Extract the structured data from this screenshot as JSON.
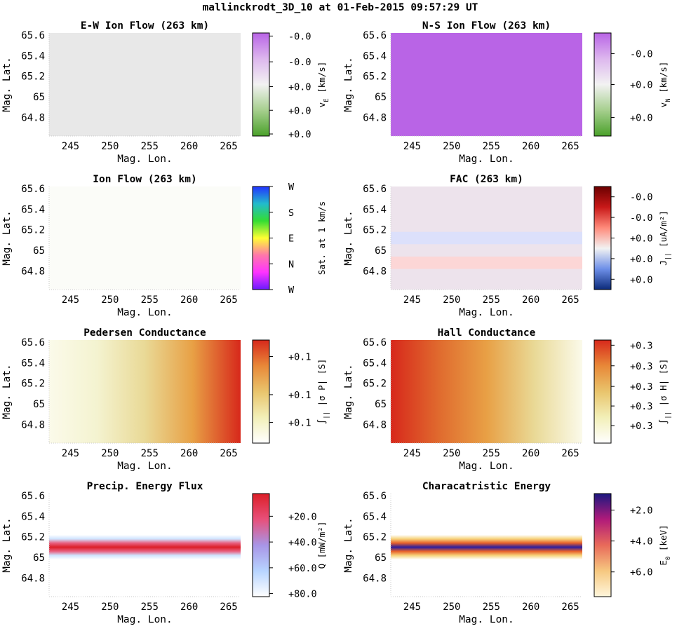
{
  "figure": {
    "title": "mallinckrodt_3D_10 at 01-Feb-2015 09:57:29 UT"
  },
  "chart_data": [
    {
      "type": "heatmap",
      "title": "E-W Ion Flow (263 km)",
      "xlabel": "Mag. Lon.",
      "ylabel": "Mag. Lat.",
      "xlim": [
        242.3,
        266.5
      ],
      "ylim": [
        64.62,
        65.62
      ],
      "xticks": [
        "245",
        "250",
        "255",
        "260",
        "265"
      ],
      "yticks": [
        "65.6",
        "65.4",
        "65.2",
        "65",
        "64.8"
      ],
      "fill": {
        "kind": "uniform",
        "color": "#e8e8e8"
      },
      "colorbar": {
        "label_main": "v",
        "label_sub": "E",
        "label_unit": " [km/s]",
        "colors": [
          "#4aa12a",
          "#a6cf8e",
          "#f2f2f2",
          "#ddb7ee",
          "#b964e6"
        ],
        "ticks": [
          "+0.0",
          "+0.0",
          "+0.0",
          "-0.0",
          "-0.0"
        ],
        "tick_positions": [
          0.98,
          0.75,
          0.52,
          0.28,
          0.03
        ]
      }
    },
    {
      "type": "heatmap",
      "title": "N-S Ion Flow (263 km)",
      "xlabel": "Mag. Lon.",
      "ylabel": "Mag. Lat.",
      "xlim": [
        242.3,
        266.5
      ],
      "ylim": [
        64.62,
        65.62
      ],
      "xticks": [
        "245",
        "250",
        "255",
        "260",
        "265"
      ],
      "yticks": [
        "65.6",
        "65.4",
        "65.2",
        "65",
        "64.8"
      ],
      "fill": {
        "kind": "uniform",
        "color": "#b964e6"
      },
      "colorbar": {
        "label_main": "v",
        "label_sub": "N",
        "label_unit": " [km/s]",
        "colors": [
          "#4aa12a",
          "#a6cf8e",
          "#f2f2f2",
          "#ddb7ee",
          "#b964e6"
        ],
        "ticks": [
          "+0.0",
          "+0.0",
          "-0.0"
        ],
        "tick_positions": [
          0.82,
          0.5,
          0.2
        ]
      }
    },
    {
      "type": "heatmap",
      "title": "Ion Flow (263 km)",
      "xlabel": "Mag. Lon.",
      "ylabel": "Mag. Lat.",
      "xlim": [
        242.3,
        266.5
      ],
      "ylim": [
        64.62,
        65.62
      ],
      "xticks": [
        "245",
        "250",
        "255",
        "260",
        "265"
      ],
      "yticks": [
        "65.6",
        "65.4",
        "65.2",
        "65",
        "64.8"
      ],
      "fill": {
        "kind": "uniform",
        "color": "#fbfcf8"
      },
      "colorbar": {
        "label_main": "Sat. at 1 km/s",
        "label_sub": "",
        "label_unit": "",
        "colors": [
          "#6a1bff",
          "#ff33ff",
          "#ff77aa",
          "#ffff33",
          "#33dd33",
          "#22bbcc",
          "#2233ff"
        ],
        "ticks": [
          "W",
          "N",
          "E",
          "S",
          "W"
        ],
        "tick_positions": [
          1.0,
          0.75,
          0.5,
          0.25,
          0.0
        ]
      }
    },
    {
      "type": "heatmap",
      "title": "FAC (263 km)",
      "xlabel": "Mag. Lon.",
      "ylabel": "Mag. Lat.",
      "xlim": [
        242.3,
        266.5
      ],
      "ylim": [
        64.62,
        65.62
      ],
      "xticks": [
        "245",
        "250",
        "255",
        "260",
        "265"
      ],
      "yticks": [
        "65.6",
        "65.4",
        "65.2",
        "65",
        "64.8"
      ],
      "fill": {
        "kind": "lat-bands",
        "base": "#ede3ec",
        "bands": [
          {
            "lat_center": 65.12,
            "half_width": 0.06,
            "color": "#dce0fb"
          },
          {
            "lat_center": 64.88,
            "half_width": 0.06,
            "color": "#fcd6d6"
          }
        ]
      },
      "colorbar": {
        "label_main": "J",
        "label_sub": "||",
        "label_unit": " [uA/m²]",
        "colors": [
          "#0b2a7a",
          "#6d8fe8",
          "#f2f2f2",
          "#ff8a7a",
          "#c81818",
          "#6a0000"
        ],
        "ticks": [
          "+0.0",
          "+0.0",
          "+0.0",
          "-0.0",
          "-0.0"
        ],
        "tick_positions": [
          0.9,
          0.7,
          0.5,
          0.3,
          0.1
        ]
      }
    },
    {
      "type": "heatmap",
      "title": "Pedersen Conductance",
      "xlabel": "Mag. Lon.",
      "ylabel": "Mag. Lat.",
      "xlim": [
        242.3,
        266.5
      ],
      "ylim": [
        64.62,
        65.62
      ],
      "xticks": [
        "245",
        "250",
        "255",
        "260",
        "265"
      ],
      "yticks": [
        "65.6",
        "65.4",
        "65.2",
        "65",
        "64.8"
      ],
      "fill": {
        "kind": "lon-gradient",
        "stops": [
          "#fbfaea",
          "#f4f3d0",
          "#e9d996",
          "#e8a045",
          "#d7281b"
        ]
      },
      "colorbar": {
        "label_main": "∫",
        "label_sub": "||",
        "label_unit": " |σ P| [S]",
        "colors": [
          "#ffffff",
          "#f2efb8",
          "#e9c46c",
          "#e88838",
          "#d7281b"
        ],
        "ticks": [
          "+0.1",
          "+0.1",
          "+0.1"
        ],
        "tick_positions": [
          0.8,
          0.53,
          0.16
        ]
      }
    },
    {
      "type": "heatmap",
      "title": "Hall Conductance",
      "xlabel": "Mag. Lon.",
      "ylabel": "Mag. Lat.",
      "xlim": [
        242.3,
        266.5
      ],
      "ylim": [
        64.62,
        65.62
      ],
      "xticks": [
        "245",
        "250",
        "255",
        "260",
        "265"
      ],
      "yticks": [
        "65.6",
        "65.4",
        "65.2",
        "65",
        "64.8"
      ],
      "fill": {
        "kind": "lon-gradient",
        "stops": [
          "#d7281b",
          "#e06a2e",
          "#e8a045",
          "#e9d996",
          "#fbfaea"
        ]
      },
      "colorbar": {
        "label_main": "∫",
        "label_sub": "||",
        "label_unit": " |σ H| [S]",
        "colors": [
          "#ffffff",
          "#f2efb8",
          "#e9c46c",
          "#e88838",
          "#d7281b"
        ],
        "ticks": [
          "+0.3",
          "+0.3",
          "+0.3",
          "+0.3",
          "+0.3"
        ],
        "tick_positions": [
          0.83,
          0.64,
          0.45,
          0.25,
          0.05
        ]
      }
    },
    {
      "type": "heatmap",
      "title": "Precip. Energy Flux",
      "xlabel": "Mag. Lon.",
      "ylabel": "Mag. Lat.",
      "xlim": [
        242.3,
        266.5
      ],
      "ylim": [
        64.62,
        65.62
      ],
      "xticks": [
        "245",
        "250",
        "255",
        "260",
        "265"
      ],
      "yticks": [
        "65.6",
        "65.4",
        "65.2",
        "65",
        "64.8"
      ],
      "fill": {
        "kind": "lat-band-gradient",
        "lat_center": 65.1,
        "half_width": 0.12,
        "stops": [
          "#ffffff",
          "#cfe4ff",
          "#e86080",
          "#dc1f28",
          "#e86080",
          "#cfe4ff",
          "#ffffff"
        ]
      },
      "colorbar": {
        "label_main": "Q",
        "label_sub": "",
        "label_unit": " [mW/m²]",
        "colors": [
          "#ffffff",
          "#b7d4ff",
          "#a895e6",
          "#e8507a",
          "#dc1f28"
        ],
        "ticks": [
          "+80.0",
          "+60.0",
          "+40.0",
          "+20.0"
        ],
        "tick_positions": [
          0.97,
          0.72,
          0.47,
          0.22
        ]
      }
    },
    {
      "type": "heatmap",
      "title": "Characatristic Energy",
      "xlabel": "Mag. Lon.",
      "ylabel": "Mag. Lat.",
      "xlim": [
        242.3,
        266.5
      ],
      "ylim": [
        64.62,
        65.62
      ],
      "xticks": [
        "245",
        "250",
        "255",
        "260",
        "265"
      ],
      "yticks": [
        "65.6",
        "65.4",
        "65.2",
        "65",
        "64.8"
      ],
      "fill": {
        "kind": "lat-band-gradient",
        "lat_center": 65.1,
        "half_width": 0.12,
        "stops": [
          "#ffffff",
          "#f6d27a",
          "#e8602a",
          "#2a1ea0",
          "#e8602a",
          "#f6d27a",
          "#ffffff"
        ]
      },
      "colorbar": {
        "label_main": "E",
        "label_sub": "0",
        "label_unit": " [keV]",
        "colors": [
          "#fff6dc",
          "#f6c880",
          "#e86a5a",
          "#b01a7a",
          "#1c1880"
        ],
        "ticks": [
          "+6.0",
          "+4.0",
          "+2.0"
        ],
        "tick_positions": [
          0.76,
          0.46,
          0.16
        ]
      }
    }
  ]
}
